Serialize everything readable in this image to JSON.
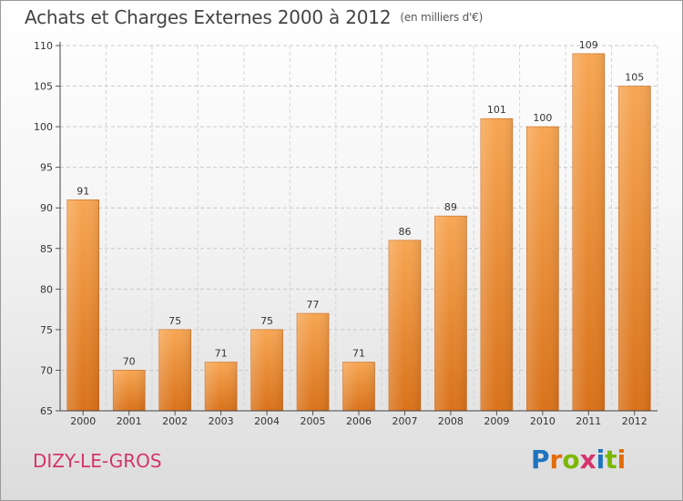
{
  "header": {
    "title": "Achats et Charges Externes 2000 à 2012",
    "unit": "(en milliers d'€)"
  },
  "footer": {
    "town": "DIZY-LE-GROS",
    "brand": "Proxiti",
    "brand_letter_colors": [
      "#1e73be",
      "#e36c0a",
      "#7ab800",
      "#d6336c",
      "#1e73be",
      "#7ab800",
      "#e36c0a"
    ]
  },
  "chart_data": {
    "type": "bar",
    "categories": [
      "2000",
      "2001",
      "2002",
      "2003",
      "2004",
      "2005",
      "2006",
      "2007",
      "2008",
      "2009",
      "2010",
      "2011",
      "2012"
    ],
    "values": [
      91,
      70,
      75,
      71,
      75,
      77,
      71,
      86,
      89,
      101,
      100,
      109,
      105
    ],
    "ylim": [
      65,
      110
    ],
    "yticks": [
      65,
      70,
      75,
      80,
      85,
      90,
      95,
      100,
      105,
      110
    ],
    "grid": true,
    "bar_color": "#f08a2c"
  }
}
